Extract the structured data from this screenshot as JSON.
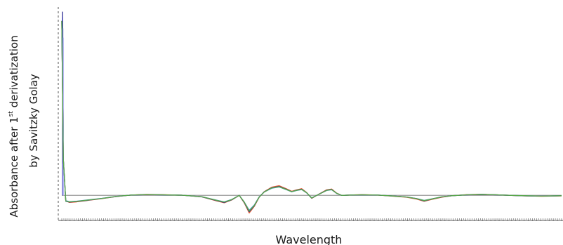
{
  "chart_data": {
    "type": "line",
    "title": "",
    "xlabel": "Wavelength",
    "ylabel_parts": [
      "Absorbance after 1",
      "st",
      " derivatization"
    ],
    "ylabel_line2": "by Savitzky  Golay",
    "xlim": [
      0,
      100
    ],
    "ylim": [
      -0.12,
      1.0
    ],
    "baseline": 0,
    "grid": false,
    "legend": "none",
    "x": [
      0,
      0.3,
      0.8,
      1.5,
      3,
      5,
      8,
      11,
      14,
      17,
      20,
      24,
      28,
      31,
      32.5,
      34,
      35.5,
      36.5,
      37.5,
      38.5,
      39.5,
      40.5,
      42,
      43.5,
      45,
      46,
      47,
      48,
      49,
      50,
      51,
      52,
      53,
      54,
      55,
      56,
      58,
      60,
      63,
      66,
      69,
      71,
      72.5,
      74,
      76,
      78,
      81,
      84,
      87,
      90,
      93,
      96,
      100
    ],
    "series": [
      {
        "color": "#e8542a",
        "values": [
          0.94,
          0.2,
          -0.03,
          -0.038,
          -0.035,
          -0.028,
          -0.018,
          -0.006,
          0.002,
          0.005,
          0.004,
          0.001,
          -0.008,
          -0.03,
          -0.04,
          -0.025,
          0.0,
          -0.04,
          -0.095,
          -0.06,
          -0.01,
          0.02,
          0.044,
          0.052,
          0.035,
          0.022,
          0.03,
          0.036,
          0.015,
          -0.016,
          0.0,
          0.015,
          0.03,
          0.034,
          0.012,
          0.0,
          0.002,
          0.004,
          0.002,
          -0.004,
          -0.01,
          -0.02,
          -0.032,
          -0.022,
          -0.01,
          -0.002,
          0.004,
          0.006,
          0.003,
          0.0,
          -0.003,
          -0.005,
          -0.003
        ]
      },
      {
        "color": "#4a9bd6",
        "values": [
          0.94,
          0.2,
          -0.028,
          -0.034,
          -0.031,
          -0.025,
          -0.016,
          -0.005,
          0.002,
          0.004,
          0.003,
          0.001,
          -0.007,
          -0.026,
          -0.035,
          -0.022,
          0.0,
          -0.035,
          -0.08,
          -0.052,
          -0.008,
          0.018,
          0.038,
          0.045,
          0.03,
          0.019,
          0.026,
          0.031,
          0.013,
          -0.013,
          0.0,
          0.013,
          0.026,
          0.03,
          0.01,
          0.0,
          0.002,
          0.003,
          0.002,
          -0.003,
          -0.009,
          -0.017,
          -0.027,
          -0.019,
          -0.008,
          -0.002,
          0.003,
          0.005,
          0.003,
          0.0,
          -0.002,
          -0.004,
          -0.002
        ]
      },
      {
        "color": "#2e3d8f",
        "values": [
          0.94,
          0.2,
          -0.032,
          -0.036,
          -0.033,
          -0.027,
          -0.017,
          -0.006,
          0.002,
          0.004,
          0.003,
          0.001,
          -0.008,
          -0.028,
          -0.038,
          -0.024,
          0.0,
          -0.038,
          -0.088,
          -0.057,
          -0.009,
          0.019,
          0.041,
          0.048,
          0.032,
          0.02,
          0.028,
          0.033,
          0.014,
          -0.015,
          0.0,
          0.014,
          0.028,
          0.032,
          0.011,
          0.0,
          0.002,
          0.003,
          0.002,
          -0.003,
          -0.009,
          -0.018,
          -0.03,
          -0.02,
          -0.009,
          -0.002,
          0.003,
          0.005,
          0.003,
          0.0,
          -0.003,
          -0.004,
          -0.002
        ]
      },
      {
        "color": "#5aa84a",
        "values": [
          0.94,
          0.2,
          -0.03,
          -0.035,
          -0.032,
          -0.026,
          -0.017,
          -0.005,
          0.002,
          0.004,
          0.003,
          0.001,
          -0.007,
          -0.027,
          -0.036,
          -0.023,
          0.0,
          -0.036,
          -0.084,
          -0.055,
          -0.009,
          0.018,
          0.04,
          0.046,
          0.031,
          0.02,
          0.027,
          0.032,
          0.014,
          -0.014,
          0.0,
          0.013,
          0.027,
          0.031,
          0.011,
          0.0,
          0.002,
          0.003,
          0.002,
          -0.003,
          -0.009,
          -0.018,
          -0.028,
          -0.02,
          -0.008,
          -0.002,
          0.003,
          0.005,
          0.003,
          0.0,
          -0.002,
          -0.004,
          -0.002
        ]
      }
    ],
    "spike": {
      "x": [
        0.02,
        0.05,
        0.08,
        0.12,
        0.15,
        0.2
      ],
      "values": [
        0.99,
        0.96,
        0.9,
        0.85,
        0.82,
        0.8
      ],
      "colors": [
        "#1a1a8a",
        "#3a3ab0",
        "#5a5ad0",
        "#7a7ae8",
        "#9a9af0",
        "#b8b8f5"
      ]
    },
    "colors": {
      "baseline": "#9a9a9a",
      "axis": "#555555"
    }
  }
}
